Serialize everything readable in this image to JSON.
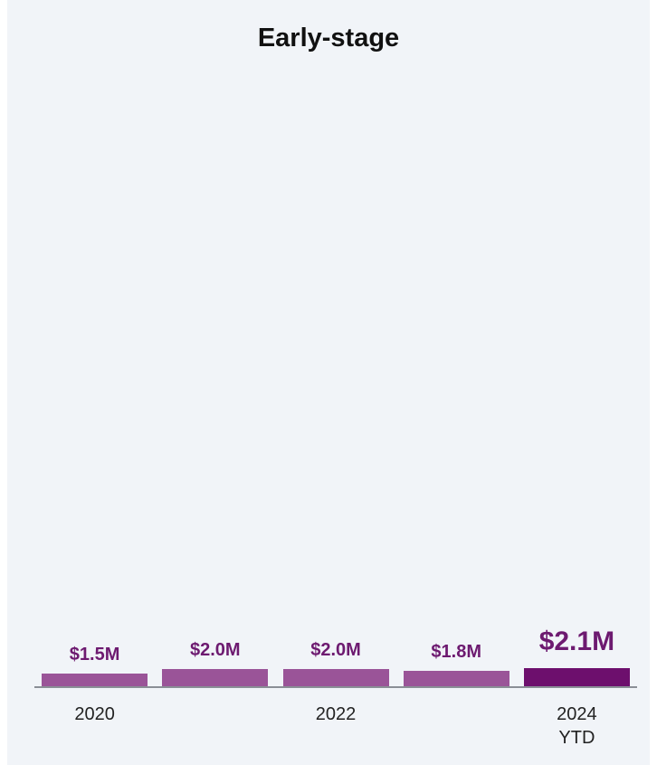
{
  "chart_data": {
    "type": "bar",
    "title": "Early-stage",
    "categories": [
      "2020",
      null,
      "2022",
      null,
      "2024 YTD"
    ],
    "values": [
      1.5,
      2.0,
      2.0,
      1.8,
      2.1
    ],
    "value_labels": [
      "$1.5M",
      "$2.0M",
      "$2.0M",
      "$1.8M",
      "$2.1M"
    ],
    "colors": [
      "#9a5498",
      "#9a5498",
      "#9a5498",
      "#9a5498",
      "#6d0f6d"
    ],
    "label_color": "#6d1a70",
    "ylim": [
      0,
      75
    ]
  }
}
